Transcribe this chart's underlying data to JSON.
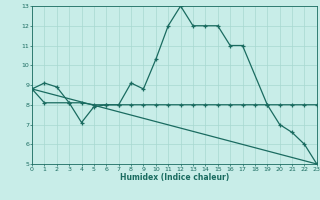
{
  "xlabel": "Humidex (Indice chaleur)",
  "bg_color": "#c8ede8",
  "grid_color": "#a8d8d0",
  "line_color": "#1a6b60",
  "x_min": 0,
  "x_max": 23,
  "y_min": 5,
  "y_max": 13,
  "line1_x": [
    0,
    1,
    2,
    3,
    4,
    5,
    6,
    7,
    8,
    9,
    10,
    11,
    12,
    13,
    14,
    15,
    16,
    17,
    19,
    20,
    21,
    22,
    23
  ],
  "line1_y": [
    8.8,
    9.1,
    8.9,
    8.1,
    7.1,
    7.9,
    8.0,
    8.0,
    9.1,
    8.8,
    10.3,
    12.0,
    13.0,
    12.0,
    12.0,
    12.0,
    11.0,
    11.0,
    8.0,
    7.0,
    6.6,
    6.0,
    5.0
  ],
  "line2_x": [
    0,
    1,
    3,
    4,
    5,
    6,
    7,
    8,
    9,
    10,
    11,
    12,
    13,
    14,
    15,
    16,
    17,
    18,
    19,
    20,
    21,
    22,
    23
  ],
  "line2_y": [
    8.8,
    8.1,
    8.1,
    8.1,
    8.0,
    8.0,
    8.0,
    8.0,
    8.0,
    8.0,
    8.0,
    8.0,
    8.0,
    8.0,
    8.0,
    8.0,
    8.0,
    8.0,
    8.0,
    8.0,
    8.0,
    8.0,
    8.0
  ],
  "line3_x": [
    0,
    23
  ],
  "line3_y": [
    8.8,
    5.0
  ]
}
